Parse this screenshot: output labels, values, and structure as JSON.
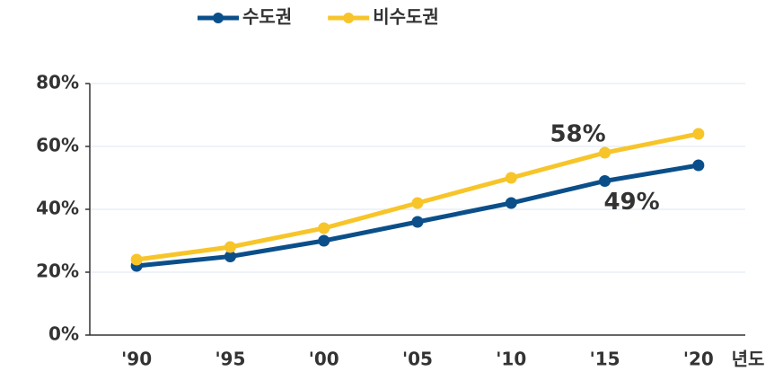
{
  "chart_data": {
    "type": "line",
    "categories": [
      "'90",
      "'95",
      "'00",
      "'05",
      "'10",
      "'15",
      "'20"
    ],
    "x_label": "년도",
    "series": [
      {
        "name": "수도권",
        "color": "#0b4f8a",
        "values": [
          22,
          25,
          30,
          36,
          42,
          49,
          54
        ],
        "value_labels": [
          null,
          null,
          null,
          null,
          null,
          "49%",
          null
        ]
      },
      {
        "name": "비수도권",
        "color": "#f7c52a",
        "values": [
          24,
          28,
          34,
          42,
          50,
          58,
          64
        ],
        "value_labels": [
          null,
          null,
          null,
          null,
          null,
          "58%",
          null
        ]
      }
    ],
    "ylim": [
      0,
      80
    ],
    "yticks": [
      {
        "value": 0,
        "label": "0%"
      },
      {
        "value": 20,
        "label": "20%"
      },
      {
        "value": 40,
        "label": "40%"
      },
      {
        "value": 60,
        "label": "60%"
      },
      {
        "value": 80,
        "label": "80%"
      }
    ],
    "grid": true,
    "legend": "top"
  }
}
